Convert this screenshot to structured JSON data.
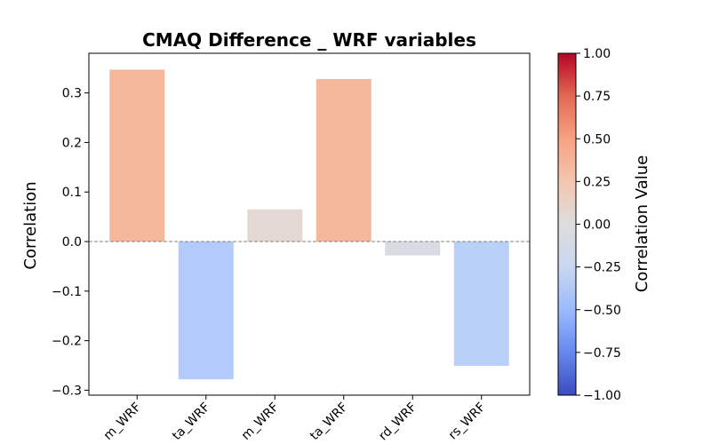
{
  "chart_data": {
    "type": "bar",
    "title": "CMAQ Difference _ WRF variables",
    "xlabel": "",
    "ylabel": "Correlation",
    "ylim": [
      -0.31,
      0.38
    ],
    "yticks": [
      -0.3,
      -0.2,
      -0.1,
      0.0,
      0.1,
      0.2,
      0.3
    ],
    "ytick_labels": [
      "−0.3",
      "−0.2",
      "−0.1",
      "0.0",
      "0.1",
      "0.2",
      "0.3"
    ],
    "categories": [
      "m_WRF",
      "ta_WRF",
      "m_WRF",
      "ta_WRF",
      "rd_WRF",
      "rs_WRF"
    ],
    "values": [
      0.347,
      -0.278,
      0.065,
      0.328,
      -0.028,
      -0.251
    ],
    "bar_colors": [
      "#f5b89d",
      "#b2cbfb",
      "#e4d9d2",
      "#f5b89d",
      "#d8dce2",
      "#b9d0f9"
    ],
    "zero_line": true,
    "grid": false,
    "colorbar": {
      "label": "Correlation Value",
      "colormap": "coolwarm",
      "range": [
        -1.0,
        1.0
      ],
      "ticks": [
        1.0,
        0.75,
        0.5,
        0.25,
        0.0,
        -0.25,
        -0.5,
        -0.75,
        -1.0
      ],
      "tick_labels": [
        "1.00",
        "0.75",
        "0.50",
        "0.25",
        "0.00",
        "−0.25",
        "−0.50",
        "−0.75",
        "−1.00"
      ],
      "stops": [
        "#3b4cc0",
        "#6788ee",
        "#9abbff",
        "#c9d7f0",
        "#dddddd",
        "#f4c6af",
        "#f6a283",
        "#e26952",
        "#b40426"
      ]
    }
  }
}
